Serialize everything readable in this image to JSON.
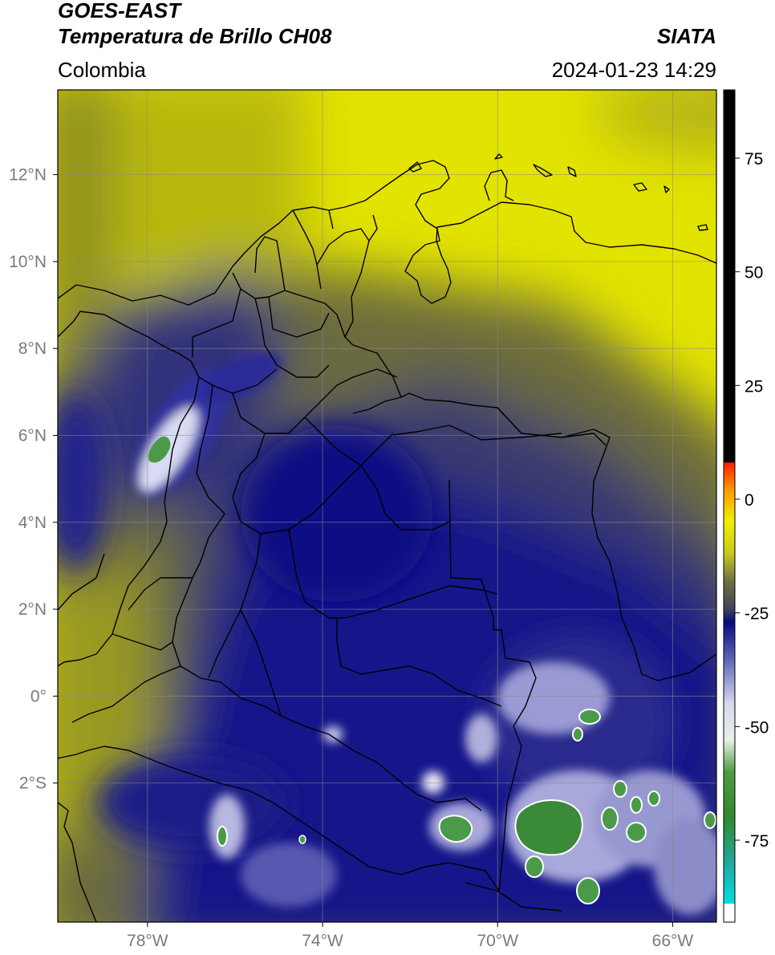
{
  "header": {
    "satellite": "GOES-EAST",
    "product": "Temperatura de Brillo CH08",
    "org": "SIATA",
    "region": "Colombia",
    "datetime": "2024-01-23 14:29"
  },
  "axes": {
    "lat_ticks": [
      {
        "value": 12,
        "label": "12°N"
      },
      {
        "value": 10,
        "label": "10°N"
      },
      {
        "value": 8,
        "label": "8°N"
      },
      {
        "value": 6,
        "label": "6°N"
      },
      {
        "value": 4,
        "label": "4°N"
      },
      {
        "value": 2,
        "label": "2°N"
      },
      {
        "value": 0,
        "label": "0°"
      },
      {
        "value": -2,
        "label": "2°S"
      }
    ],
    "lon_ticks": [
      {
        "value": -78,
        "label": "78°W"
      },
      {
        "value": -74,
        "label": "74°W"
      },
      {
        "value": -70,
        "label": "70°W"
      },
      {
        "value": -66,
        "label": "66°W"
      }
    ],
    "lat_range": [
      -5.2,
      13.95
    ],
    "lon_range": [
      -80.05,
      -65.0
    ]
  },
  "colorbar": {
    "range": [
      -93,
      90
    ],
    "ticks": [
      {
        "value": 75,
        "label": "75"
      },
      {
        "value": 50,
        "label": "50"
      },
      {
        "value": 25,
        "label": "25"
      },
      {
        "value": 0,
        "label": "0"
      },
      {
        "value": -25,
        "label": "-25"
      },
      {
        "value": -50,
        "label": "-50"
      },
      {
        "value": -75,
        "label": "-75"
      }
    ],
    "stops": [
      {
        "value": -93,
        "color": "#ffffff"
      },
      {
        "value": -89,
        "color": "#ffffff"
      },
      {
        "value": -88.9,
        "color": "#00e0e0"
      },
      {
        "value": -80,
        "color": "#20a8a0"
      },
      {
        "value": -70,
        "color": "#2f8a2f"
      },
      {
        "value": -60,
        "color": "#4f9a3f"
      },
      {
        "value": -53,
        "color": "#e6f0e6"
      },
      {
        "value": -45,
        "color": "#d8d8ee"
      },
      {
        "value": -35,
        "color": "#5a64b4"
      },
      {
        "value": -27,
        "color": "#0a0a82"
      },
      {
        "value": -24,
        "color": "#44445a"
      },
      {
        "value": -18,
        "color": "#6e7040"
      },
      {
        "value": -12,
        "color": "#c8c81e"
      },
      {
        "value": -5,
        "color": "#f0f000"
      },
      {
        "value": 2,
        "color": "#ff9900"
      },
      {
        "value": 8,
        "color": "#ff2000"
      },
      {
        "value": 8.1,
        "color": "#000000"
      },
      {
        "value": 90,
        "color": "#000000"
      }
    ]
  },
  "colors": {
    "tropical_dry": "#e8e800",
    "mid": "#8a8a28",
    "cold_cloud": "#1a1a8c",
    "very_cold": "#ffffff",
    "coldest": "#3a8a3a"
  }
}
